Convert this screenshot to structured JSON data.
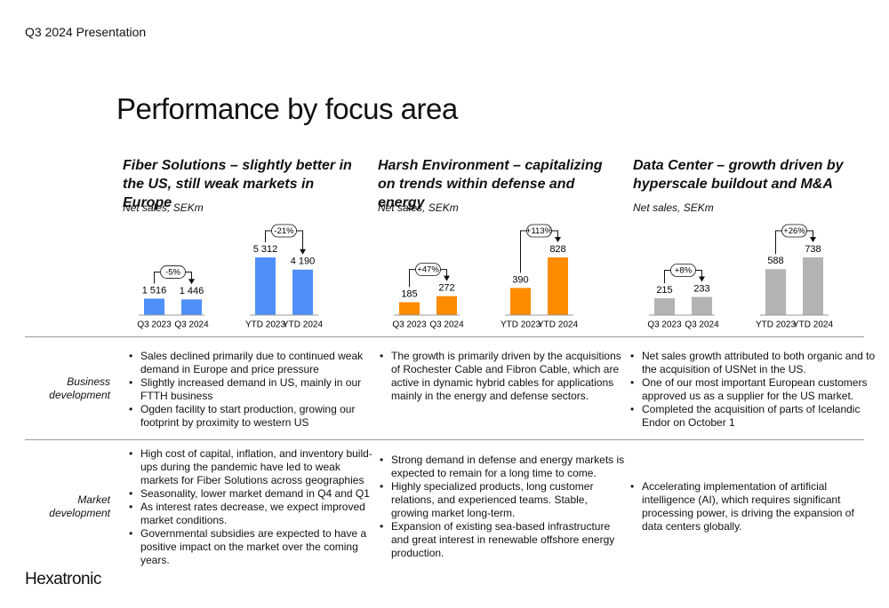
{
  "header": "Q3 2024 Presentation",
  "title": "Performance by focus area",
  "chart_data": [
    {
      "type": "bar",
      "title": "Fiber Solutions – slightly better in the US, still weak markets in Europe",
      "subtitle": "Net sales, SEKm",
      "categories": [
        "Q3 2023",
        "Q3 2024",
        "YTD 2023",
        "YTD 2024"
      ],
      "values": [
        1516,
        1446,
        5312,
        4190
      ],
      "value_labels": [
        "1 516",
        "1 446",
        "5 312",
        "4 190"
      ],
      "color": "#4f8ff7",
      "annotations": [
        "-5%",
        "-21%"
      ]
    },
    {
      "type": "bar",
      "title": "Harsh Environment – capitalizing on trends within defense and energy",
      "subtitle": "Net sales, SEKm",
      "categories": [
        "Q3 2023",
        "Q3 2024",
        "YTD 2023",
        "YTD 2024"
      ],
      "values": [
        185,
        272,
        390,
        828
      ],
      "value_labels": [
        "185",
        "272",
        "390",
        "828"
      ],
      "color": "#ff8c00",
      "annotations": [
        "+47%",
        "+113%"
      ]
    },
    {
      "type": "bar",
      "title": "Data Center – growth driven by hyperscale buildout and M&A",
      "subtitle": "Net sales, SEKm",
      "categories": [
        "Q3 2023",
        "Q3 2024",
        "YTD 2023",
        "YTD 2024"
      ],
      "values": [
        215,
        233,
        588,
        738
      ],
      "value_labels": [
        "215",
        "233",
        "588",
        "738"
      ],
      "color": "#b3b3b3",
      "annotations": [
        "+8%",
        "+26%"
      ]
    }
  ],
  "rows": [
    {
      "label": "Business development",
      "cells": [
        [
          "Sales declined primarily due to continued weak demand in Europe and price pressure",
          "Slightly increased demand in US, mainly in our FTTH business",
          "Ogden facility to start production, growing our footprint by proximity to western US"
        ],
        [
          "The growth is primarily driven by the acquisitions of Rochester Cable and Fibron Cable, which are active in dynamic hybrid cables for applications mainly in the energy and defense sectors."
        ],
        [
          "Net sales growth attributed to both organic and to the acquisition of USNet in the US.",
          "One of our most important European customers approved us as a supplier for the US market.",
          "Completed the acquisition of parts of Icelandic Endor on October 1"
        ]
      ]
    },
    {
      "label": "Market development",
      "cells": [
        [
          "High cost of capital, inflation, and inventory build-ups during the pandemic have led to weak markets for Fiber Solutions across geographies",
          "Seasonality, lower market demand in Q4 and Q1",
          "As interest rates decrease, we expect improved market conditions.",
          "Governmental subsidies are expected to have a positive impact on the market over the coming years."
        ],
        [
          "Strong demand in defense and energy markets is expected to remain for a long time to come.",
          "Highly specialized products, long customer relations, and experienced  teams. Stable, growing market long-term.",
          "Expansion of existing sea-based infrastructure and great interest in renewable offshore energy production."
        ],
        [
          "Accelerating implementation of artificial intelligence (AI), which requires significant processing power, is driving the expansion of data centers globally."
        ]
      ]
    }
  ],
  "logo": "Hexatronic"
}
